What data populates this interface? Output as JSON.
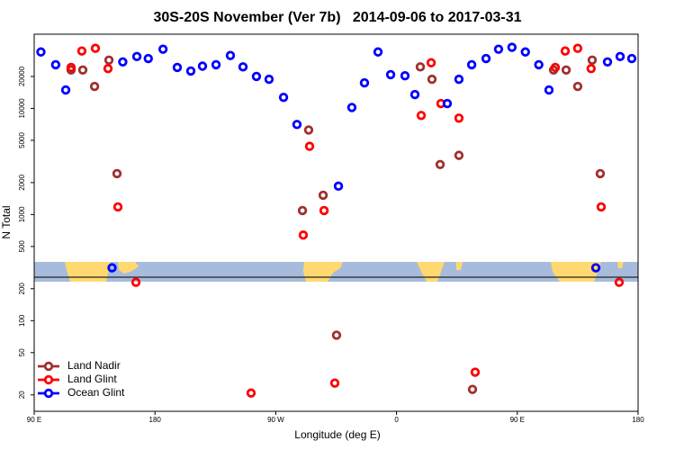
{
  "chart_data": {
    "type": "scatter",
    "title": "30S-20S November (Ver 7b)   2014-09-06 to 2017-03-31",
    "x_label": "Longitude (deg E)",
    "y_label": "N Total",
    "xlim": [
      90,
      540
    ],
    "xticks": [
      {
        "value": 90,
        "label": "90 E"
      },
      180,
      {
        "value": 270,
        "label": "90 W"
      },
      {
        "value": 360,
        "label": "0"
      },
      {
        "value": 450,
        "label": "90 E"
      },
      {
        "value": 540,
        "label": "180"
      }
    ],
    "ylim": [
      14,
      50000
    ],
    "y_scale": "log",
    "yticks": [
      20,
      50,
      100,
      200,
      500,
      1000,
      2000,
      5000,
      10000,
      20000
    ],
    "grid": false,
    "legend": "lower left",
    "series": [
      {
        "name": "Land Nadir",
        "color": "#a0302e",
        "x": [
          117.5,
          126.2,
          135,
          145.7,
          151.7,
          289.9,
          294.5,
          305.3,
          315.3,
          377.7,
          386.4,
          392.5,
          406.5,
          416.6,
          477,
          486.4,
          495,
          505.8,
          511.8
        ],
        "values": [
          23000,
          23000,
          16100,
          28500,
          2430,
          1090,
          6260,
          1520,
          73,
          24600,
          18800,
          2960,
          3610,
          22.5,
          23000,
          23000,
          16100,
          28500,
          2430
        ]
      },
      {
        "name": "Land Glint",
        "color": "#ff0000",
        "x": [
          117.5,
          125.5,
          135.6,
          145,
          152.4,
          165.8,
          251.6,
          290.5,
          295.2,
          306,
          314,
          378.4,
          385.8,
          393.1,
          406.5,
          418.6,
          478.3,
          485.7,
          495,
          505,
          512.5,
          525.9
        ],
        "values": [
          24300,
          34700,
          36800,
          23700,
          1180,
          230,
          20.8,
          640,
          4390,
          1090,
          25.8,
          8580,
          26900,
          11100,
          8090,
          32.7,
          24300,
          34700,
          36800,
          23700,
          1180,
          230
        ]
      },
      {
        "name": "Ocean Glint",
        "color": "#0000ff",
        "x": [
          95,
          106,
          113.5,
          148,
          156,
          166.5,
          175,
          186,
          196.6,
          206.7,
          215.4,
          225.5,
          236.2,
          245.6,
          255.6,
          265,
          275.8,
          285.8,
          316.7,
          326.7,
          336.1,
          346.2,
          355.6,
          366.3,
          373.7,
          397.8,
          406.5,
          416,
          426.7,
          436,
          446,
          456,
          466,
          473.6,
          508.5,
          517.2,
          526.6,
          535.3
        ],
        "values": [
          34000,
          25800,
          14900,
          315,
          27400,
          30800,
          29500,
          36100,
          24300,
          22500,
          25000,
          25800,
          31500,
          24600,
          20000,
          18800,
          12700,
          7050,
          1850,
          10200,
          17400,
          34000,
          20800,
          20300,
          13500,
          11100,
          18800,
          25800,
          29500,
          36100,
          37600,
          34000,
          25800,
          14900,
          315,
          27400,
          30800,
          29500
        ]
      }
    ]
  }
}
